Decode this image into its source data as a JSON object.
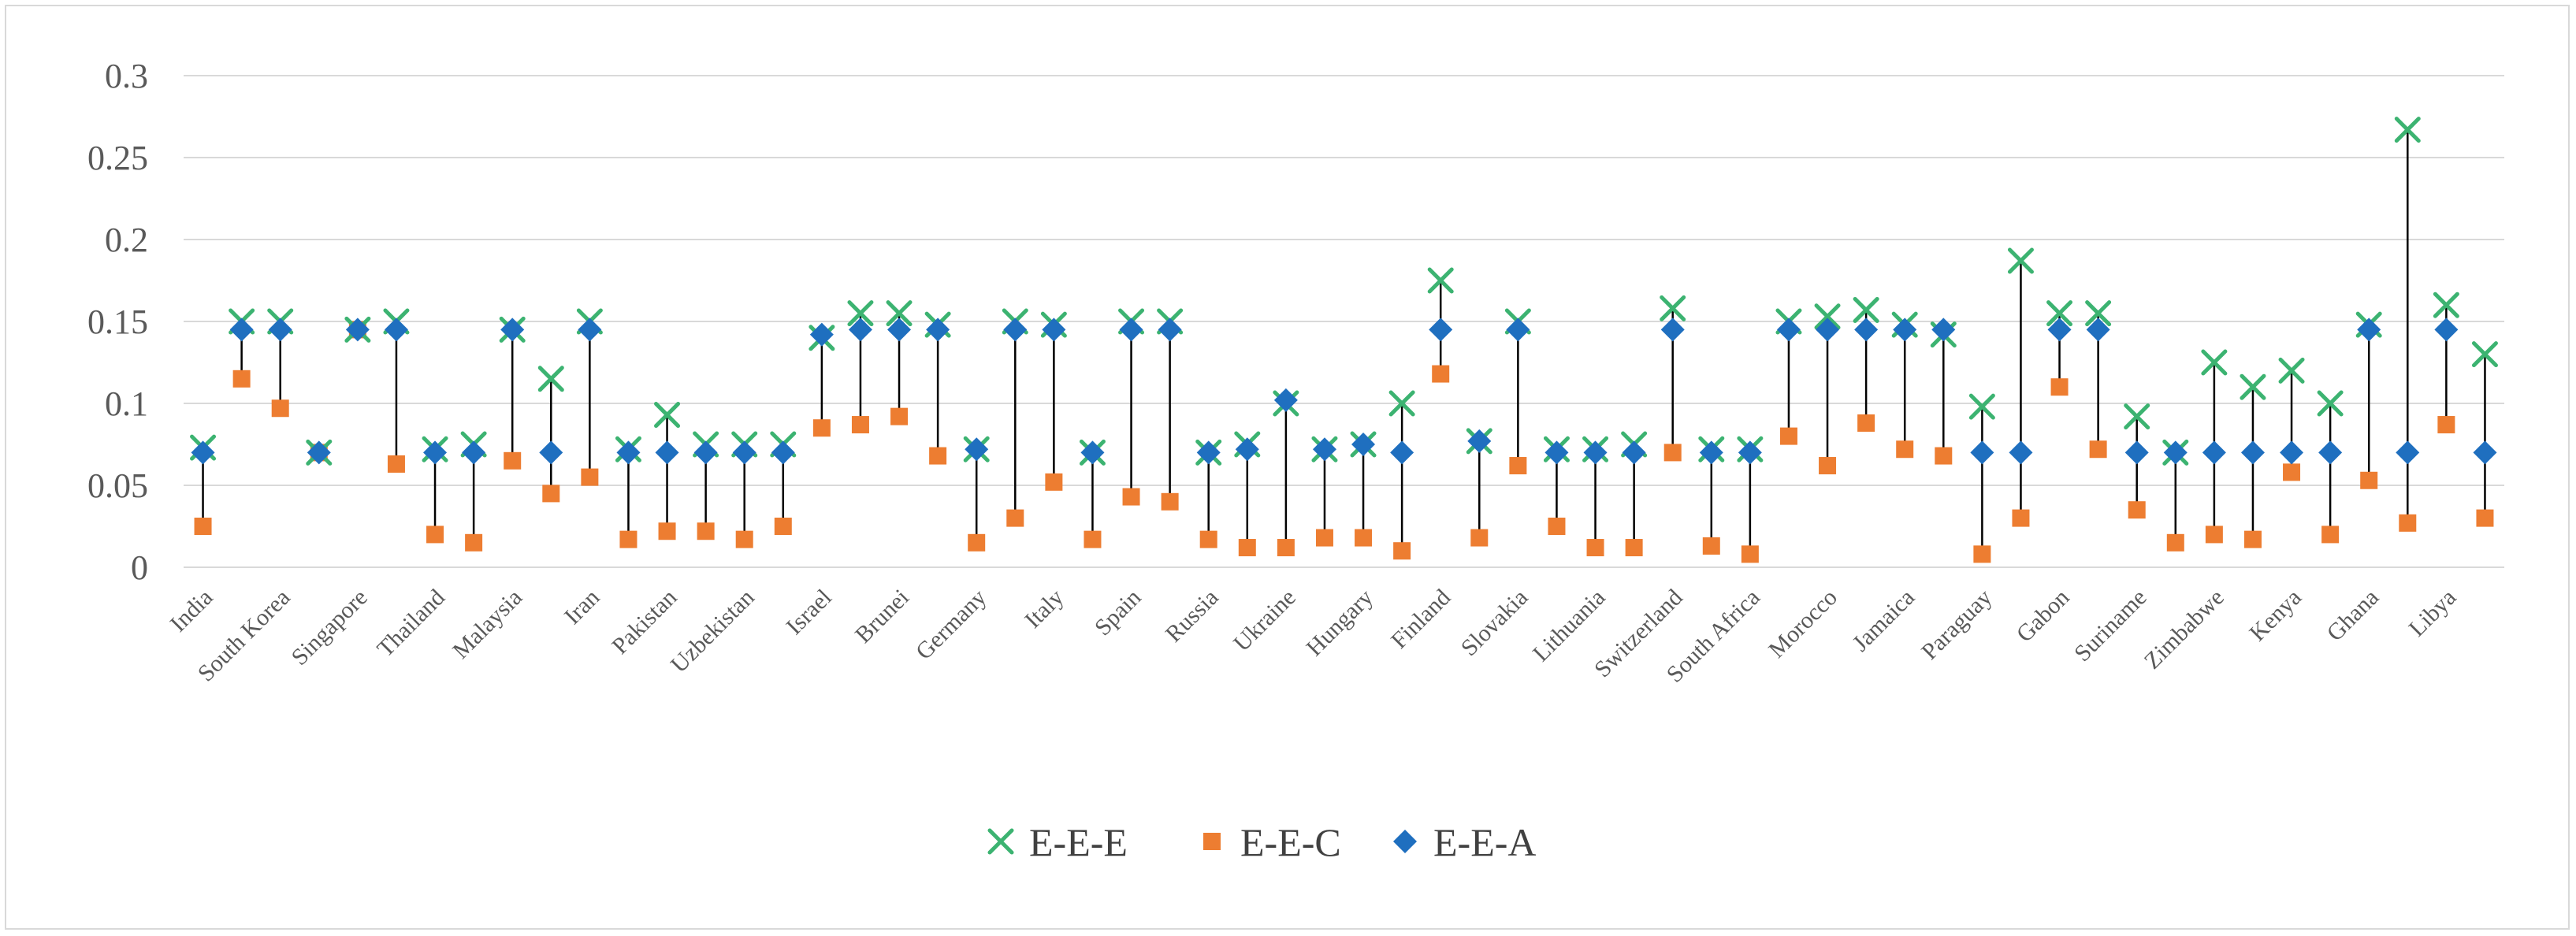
{
  "chart_data": {
    "type": "scatter",
    "title": "",
    "xlabel": "",
    "ylabel": "",
    "ylim": [
      0,
      0.3
    ],
    "yticks": [
      0,
      0.05,
      0.1,
      0.15,
      0.2,
      0.25,
      0.3
    ],
    "ytick_labels": [
      "0",
      "0.05",
      "0.1",
      "0.15",
      "0.2",
      "0.25",
      "0.3"
    ],
    "grid": true,
    "legend_position": "bottom-center",
    "colors": {
      "E-E-E": "#3cb371",
      "E-E-C": "#ed7d31",
      "E-E-A": "#1f6fbf",
      "connector": "#000000",
      "grid": "#d9d9d9"
    },
    "categories": [
      "India",
      "",
      "South Korea",
      "",
      "Singapore",
      "",
      "Thailand",
      "",
      "Malaysia",
      "",
      "Iran",
      "",
      "Pakistan",
      "",
      "Uzbekistan",
      "",
      "Israel",
      "",
      "Brunei",
      "",
      "Germany",
      "",
      "Italy",
      "",
      "Spain",
      "",
      "Russia",
      "",
      "Ukraine",
      "",
      "Hungary",
      "",
      "Finland",
      "",
      "Slovakia",
      "",
      "Lithuania",
      "",
      "Switzerland",
      "",
      "South Africa",
      "",
      "Morocco",
      "",
      "Jamaica",
      "",
      "Paraguay",
      "",
      "Gabon",
      "",
      "Suriname",
      "",
      "Zimbabwe",
      "",
      "Kenya",
      "",
      "Ghana",
      "",
      "Libya",
      ""
    ],
    "series": [
      {
        "name": "E-E-E",
        "marker": "x",
        "values": [
          0.073,
          0.15,
          0.15,
          0.07,
          0.145,
          0.15,
          0.072,
          0.075,
          0.145,
          0.115,
          0.15,
          0.072,
          0.093,
          0.075,
          0.075,
          0.075,
          0.14,
          0.155,
          0.155,
          0.148,
          0.072,
          0.15,
          0.148,
          0.07,
          0.15,
          0.15,
          0.07,
          0.075,
          0.1,
          0.072,
          0.075,
          0.1,
          0.175,
          0.077,
          0.15,
          0.072,
          0.072,
          0.075,
          0.158,
          0.072,
          0.072,
          0.15,
          0.153,
          0.157,
          0.148,
          0.142,
          0.098,
          0.187,
          0.155,
          0.155,
          0.092,
          0.07,
          0.125,
          0.11,
          0.12,
          0.1,
          0.148,
          0.267,
          0.16,
          0.13
        ]
      },
      {
        "name": "E-E-C",
        "marker": "square",
        "values": [
          0.025,
          0.115,
          0.097,
          0.07,
          0.145,
          0.063,
          0.02,
          0.015,
          0.065,
          0.045,
          0.055,
          0.017,
          0.022,
          0.022,
          0.017,
          0.025,
          0.085,
          0.087,
          0.092,
          0.068,
          0.015,
          0.03,
          0.052,
          0.017,
          0.043,
          0.04,
          0.017,
          0.012,
          0.012,
          0.018,
          0.018,
          0.01,
          0.118,
          0.018,
          0.062,
          0.025,
          0.012,
          0.012,
          0.07,
          0.013,
          0.008,
          0.08,
          0.062,
          0.088,
          0.072,
          0.068,
          0.008,
          0.03,
          0.11,
          0.072,
          0.035,
          0.015,
          0.02,
          0.017,
          0.058,
          0.02,
          0.053,
          0.027,
          0.087,
          0.03
        ]
      },
      {
        "name": "E-E-A",
        "marker": "diamond",
        "values": [
          0.07,
          0.145,
          0.145,
          0.07,
          0.145,
          0.145,
          0.07,
          0.07,
          0.145,
          0.07,
          0.145,
          0.07,
          0.07,
          0.07,
          0.07,
          0.07,
          0.142,
          0.145,
          0.145,
          0.145,
          0.072,
          0.145,
          0.145,
          0.07,
          0.145,
          0.145,
          0.07,
          0.072,
          0.102,
          0.072,
          0.075,
          0.07,
          0.145,
          0.077,
          0.145,
          0.07,
          0.07,
          0.07,
          0.145,
          0.07,
          0.07,
          0.145,
          0.145,
          0.145,
          0.145,
          0.145,
          0.07,
          0.07,
          0.145,
          0.145,
          0.07,
          0.07,
          0.07,
          0.07,
          0.07,
          0.07,
          0.145,
          0.07,
          0.145,
          0.07
        ]
      }
    ]
  }
}
